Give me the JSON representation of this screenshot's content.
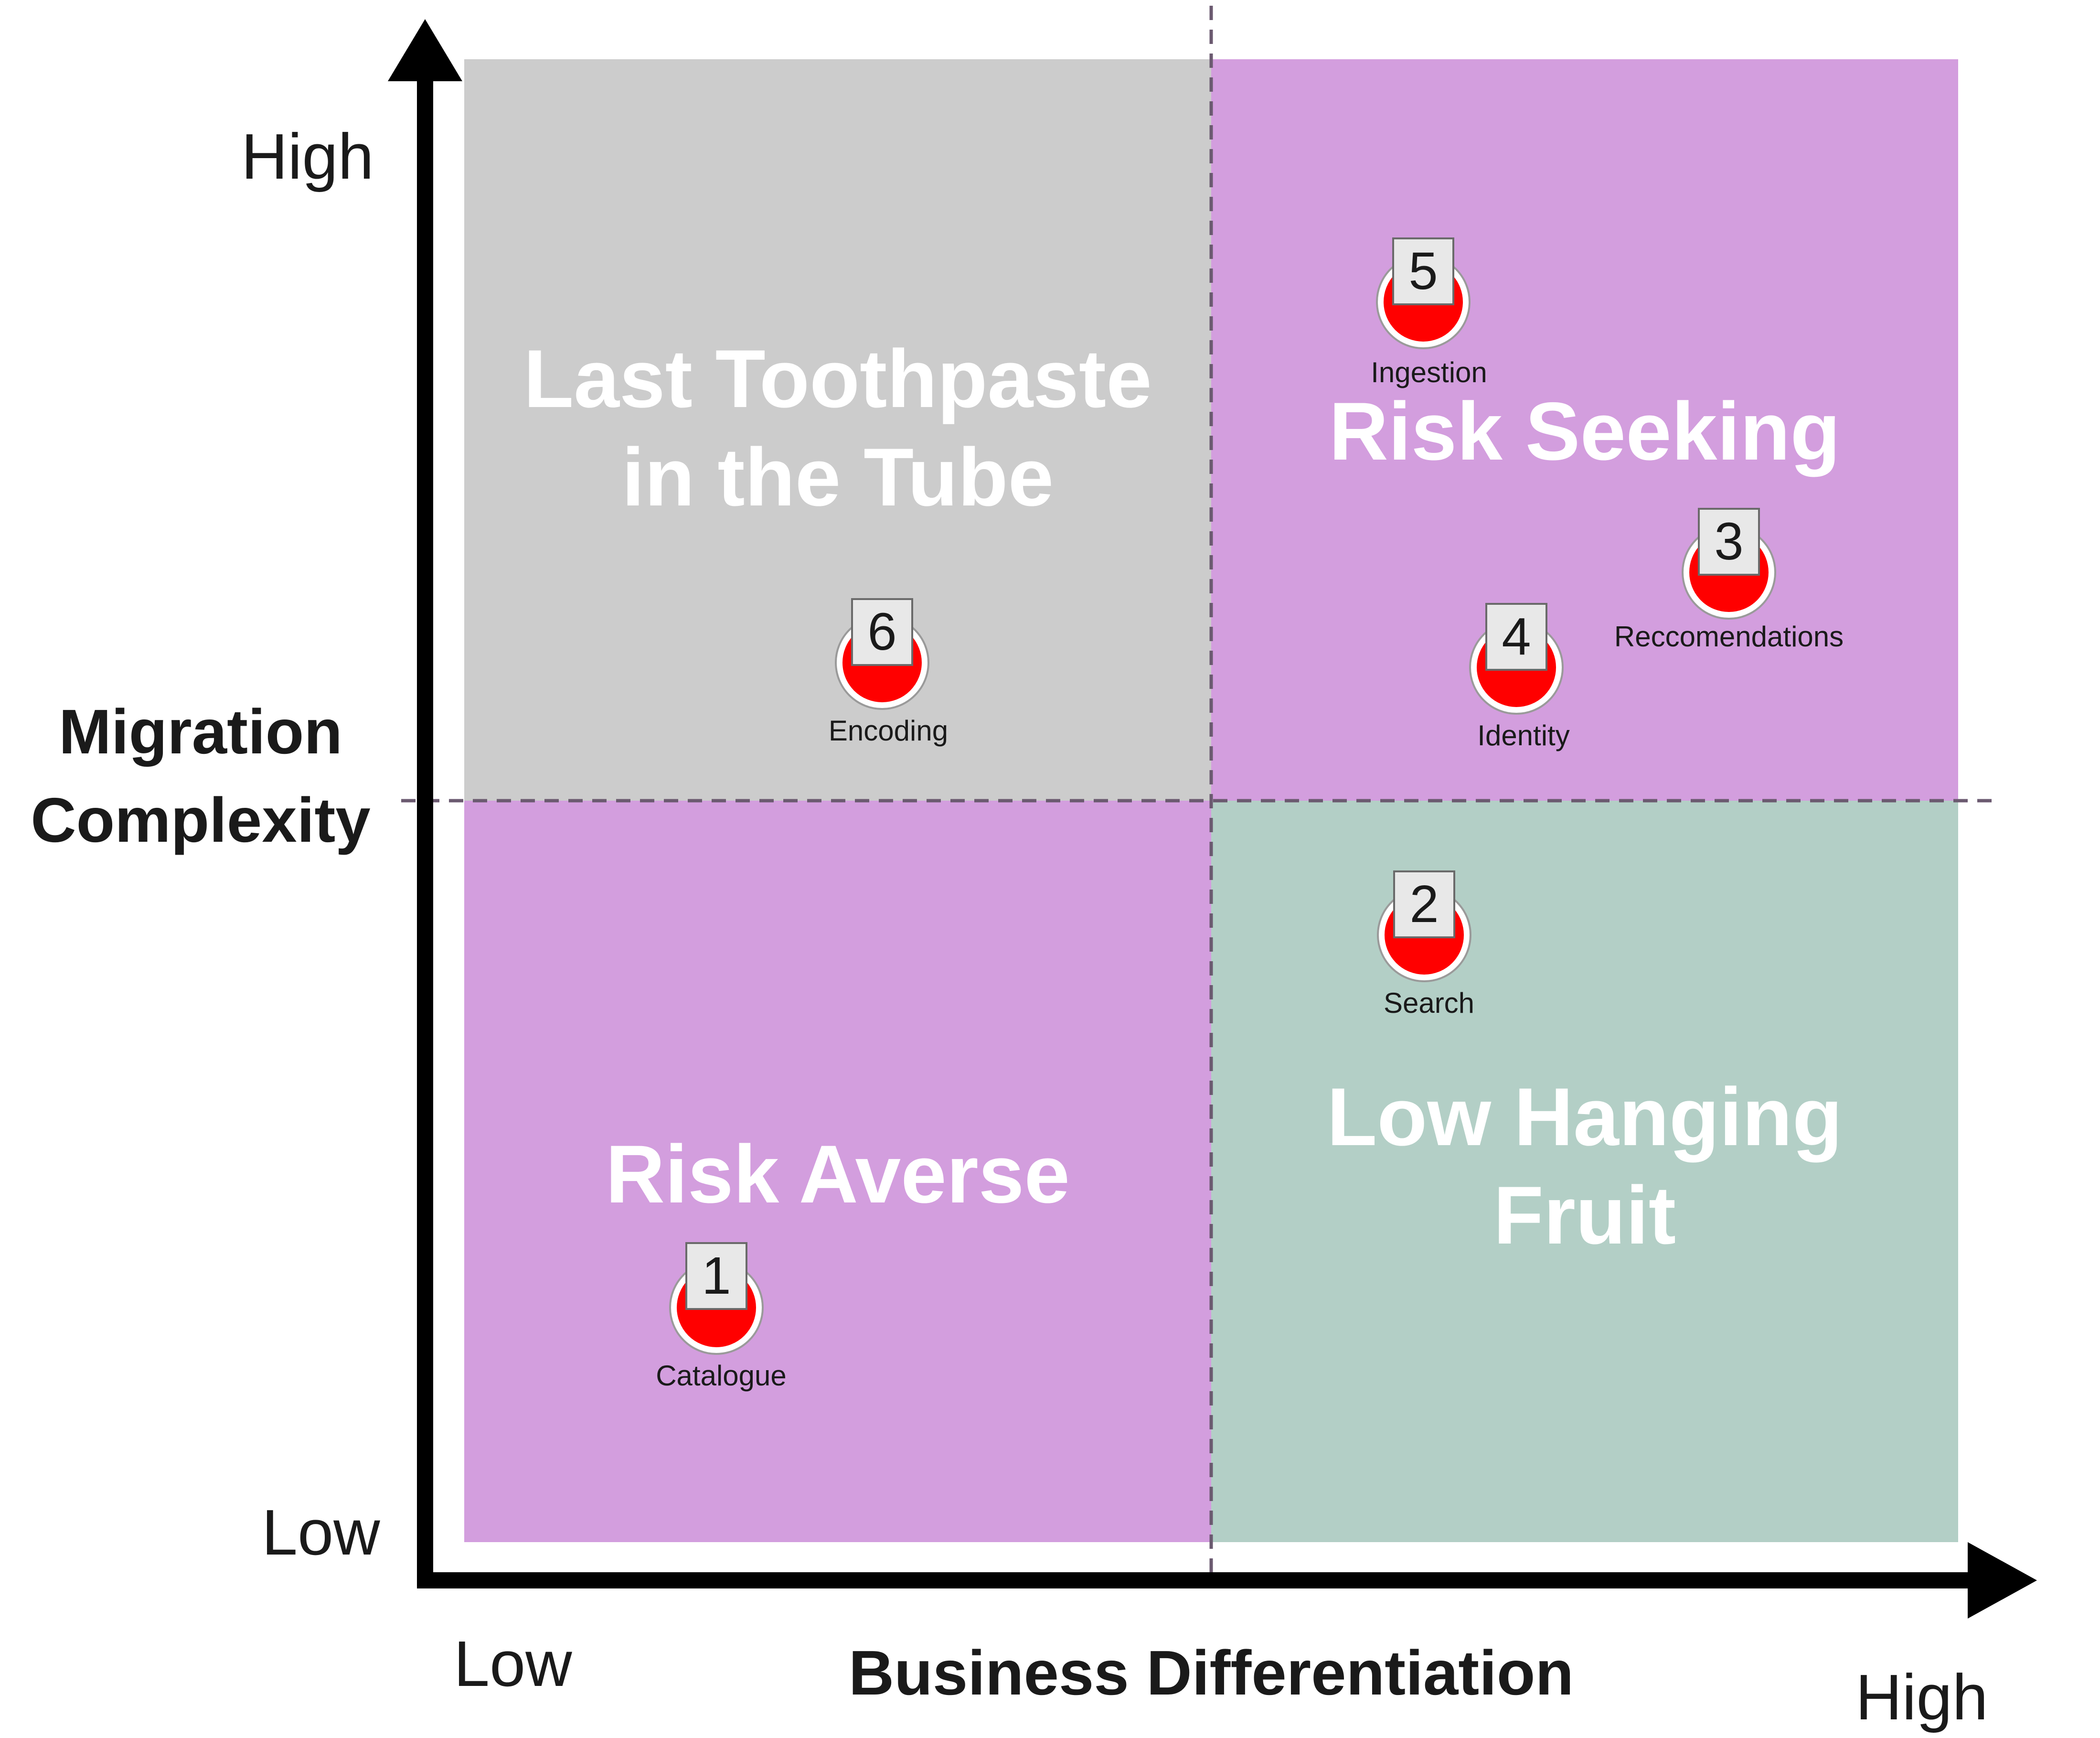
{
  "axes": {
    "y_title_line1": "Migration",
    "y_title_line2": "Complexity",
    "y_high": "High",
    "y_low": "Low",
    "x_title": "Business Differentiation",
    "x_low": "Low",
    "x_high": "High"
  },
  "quadrants": {
    "top_left": {
      "line1": "Last Toothpaste",
      "line2": "in the Tube"
    },
    "top_right": {
      "line1": "Risk Seeking"
    },
    "bottom_left": {
      "line1": "Risk Averse"
    },
    "bottom_right": {
      "line1": "Low Hanging",
      "line2": "Fruit"
    }
  },
  "items": [
    {
      "number": "1",
      "label": "Catalogue"
    },
    {
      "number": "2",
      "label": "Search"
    },
    {
      "number": "3",
      "label": "Reccomendations"
    },
    {
      "number": "4",
      "label": "Identity"
    },
    {
      "number": "5",
      "label": "Ingestion"
    },
    {
      "number": "6",
      "label": "Encoding"
    }
  ],
  "colors": {
    "quadrant_purple": "#d39ede",
    "quadrant_gray": "#cccccc",
    "quadrant_green": "#b3cfc6",
    "marker_red": "#ff0000",
    "axis": "#000000"
  }
}
